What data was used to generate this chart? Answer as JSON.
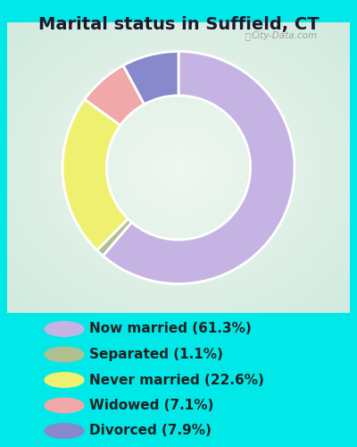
{
  "title": "Marital status in Suffield, CT",
  "slices": [
    61.3,
    1.1,
    22.6,
    7.1,
    7.9
  ],
  "colors": [
    "#c5b4e3",
    "#b0c090",
    "#f0f070",
    "#f0a8a8",
    "#8888cc"
  ],
  "labels": [
    "Now married (61.3%)",
    "Separated (1.1%)",
    "Never married (22.6%)",
    "Widowed (7.1%)",
    "Divorced (7.9%)"
  ],
  "legend_colors": [
    "#c5b4e3",
    "#b0c090",
    "#f0f070",
    "#f0a8a8",
    "#8888cc"
  ],
  "bg_outer": "#00e8e8",
  "bg_chart_color1": "#e8f5e8",
  "bg_chart_color2": "#d0ecd8",
  "watermark": "City-Data.com",
  "title_fontsize": 14,
  "legend_fontsize": 11,
  "donut_width": 0.38
}
